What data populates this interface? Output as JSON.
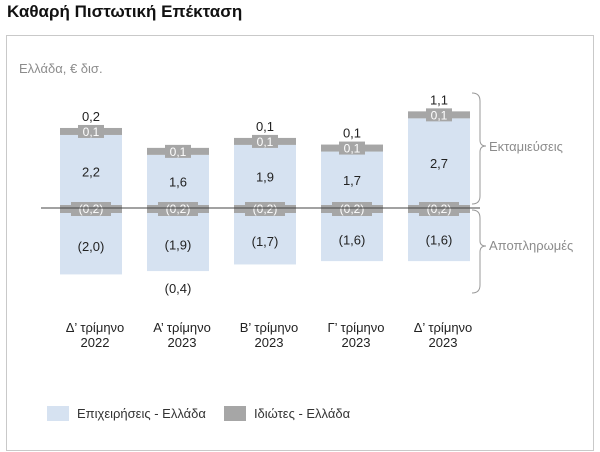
{
  "title": "Καθαρή Πιστωτική Επέκταση",
  "colors": {
    "business": "#d6e2f1",
    "individuals": "#a6a6a6",
    "text": "#222222",
    "subtitle": "#8c8c8c"
  },
  "chart_data": {
    "type": "bar",
    "subtitle": "Ελλάδα, € δισ.",
    "categories": [
      [
        "Δ’ τρίμηνο",
        "2022"
      ],
      [
        "Α’ τρίμηνο",
        "2023"
      ],
      [
        "Β’ τρίμηνο",
        "2023"
      ],
      [
        "Γ’ τρίμηνο",
        "2023"
      ],
      [
        "Δ’ τρίμηνο",
        "2023"
      ]
    ],
    "series": [
      {
        "name": "Επιχειρήσεις - Ελλάδα",
        "disbursements": [
          2.2,
          1.6,
          1.9,
          1.7,
          2.7
        ],
        "repayments": [
          -2.0,
          -1.9,
          -1.7,
          -1.6,
          -1.6
        ],
        "disbursement_labels": [
          "2,2",
          "1,6",
          "1,9",
          "1,7",
          "2,7"
        ],
        "repayment_labels": [
          "(2,0)",
          "(1,9)",
          "(1,7)",
          "(1,6)",
          "(1,6)"
        ]
      },
      {
        "name": "Ιδιώτες - Ελλάδα",
        "disbursements": [
          0.1,
          0.1,
          0.1,
          0.1,
          0.1
        ],
        "repayments": [
          -0.2,
          -0.2,
          -0.2,
          -0.2,
          -0.2
        ],
        "disbursement_labels": [
          "0,1",
          "0,1",
          "0,1",
          "0,1",
          "0,1"
        ],
        "repayment_labels": [
          "(0,2)",
          "(0,2)",
          "(0,2)",
          "(0,2)",
          "(0,2)"
        ]
      }
    ],
    "net_totals": [
      0.2,
      -0.4,
      0.1,
      0.1,
      1.1
    ],
    "net_total_labels": [
      "0,2",
      "(0,4)",
      "0,1",
      "0,1",
      "1,1"
    ],
    "brackets": {
      "upper": "Εκταμιεύσεις",
      "lower": "Αποπληρωμές"
    }
  }
}
